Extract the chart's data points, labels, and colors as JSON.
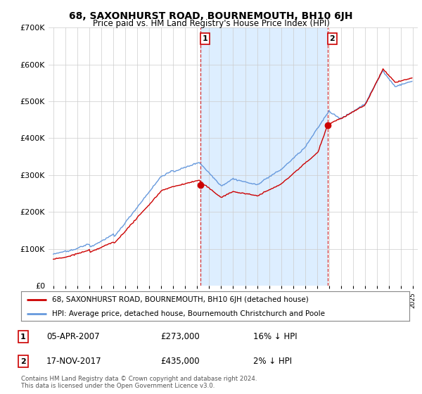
{
  "title": "68, SAXONHURST ROAD, BOURNEMOUTH, BH10 6JH",
  "subtitle": "Price paid vs. HM Land Registry's House Price Index (HPI)",
  "plot_bg_color": "#ffffff",
  "highlight_color": "#ddeeff",
  "grid_color": "#cccccc",
  "ylim": [
    0,
    700000
  ],
  "yticks": [
    0,
    100000,
    200000,
    300000,
    400000,
    500000,
    600000,
    700000
  ],
  "legend_entry1": "68, SAXONHURST ROAD, BOURNEMOUTH, BH10 6JH (detached house)",
  "legend_entry2": "HPI: Average price, detached house, Bournemouth Christchurch and Poole",
  "transaction1_label": "1",
  "transaction1_date": "05-APR-2007",
  "transaction1_price": "£273,000",
  "transaction1_hpi": "16% ↓ HPI",
  "transaction1_x": 2007.27,
  "transaction1_y": 273000,
  "transaction2_label": "2",
  "transaction2_date": "17-NOV-2017",
  "transaction2_price": "£435,000",
  "transaction2_hpi": "2% ↓ HPI",
  "transaction2_x": 2017.88,
  "transaction2_y": 435000,
  "footer": "Contains HM Land Registry data © Crown copyright and database right 2024.\nThis data is licensed under the Open Government Licence v3.0.",
  "hpi_color": "#6699dd",
  "price_color": "#cc0000",
  "marker_color": "#cc0000",
  "xlim": [
    1994.6,
    2025.4
  ],
  "xtick_years": [
    1995,
    1996,
    1997,
    1998,
    1999,
    2000,
    2001,
    2002,
    2003,
    2004,
    2005,
    2006,
    2007,
    2008,
    2009,
    2010,
    2011,
    2012,
    2013,
    2014,
    2015,
    2016,
    2017,
    2018,
    2019,
    2020,
    2021,
    2022,
    2023,
    2024,
    2025
  ]
}
